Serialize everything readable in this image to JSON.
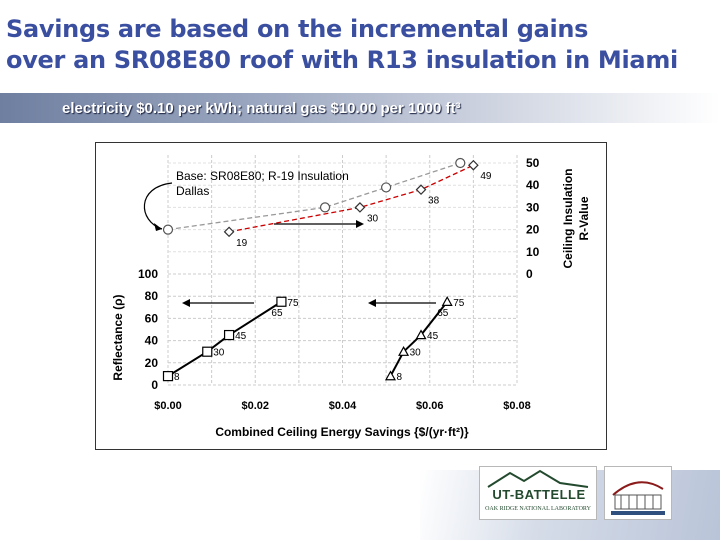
{
  "slide": {
    "title_line1": "Savings are based on the incremental gains",
    "title_line2": "over an SR08E80 roof with R13 insulation in Miami",
    "subtitle": "electricity $0.10 per kWh; natural gas $10.00 per 1000 ft³",
    "logo_text": "UT-BATTELLE",
    "logo_subtext": "OAK RIDGE NATIONAL LABORATORY"
  },
  "colors": {
    "title": "#3b4fa0",
    "series_miami": "#cc0000",
    "series_dallas": "#999999",
    "axis_text": "#000000"
  },
  "chart_data": [
    {
      "type": "line",
      "annotation_line1": "Base: SR08E80; R-19 Insulation",
      "annotation_line2": "Dallas",
      "xlabel": "Combined Ceiling Energy Savings {$/(yr·ft²)}",
      "ylabel": "Ceiling Insulation R-Value",
      "xlim": [
        0,
        0.08
      ],
      "ylim": [
        0,
        50
      ],
      "x_ticks": [
        "$0.00",
        "$0.02",
        "$0.04",
        "$0.06",
        "$0.08"
      ],
      "y_ticks": [
        "0",
        "10",
        "20",
        "30",
        "40",
        "50"
      ],
      "grid": true,
      "series": [
        {
          "marker": "diamond",
          "style": "dashed",
          "color": "#cc0000",
          "x": [
            0.014,
            0.044,
            0.058,
            0.07
          ],
          "y": [
            19,
            30,
            38,
            49
          ],
          "labels": [
            "19",
            "30",
            "38",
            "49"
          ]
        },
        {
          "marker": "circle",
          "style": "dashed",
          "color": "#999999",
          "x": [
            0.0,
            0.036,
            0.05,
            0.067
          ],
          "y": [
            20,
            30,
            39,
            50
          ]
        }
      ]
    },
    {
      "type": "line",
      "xlabel": "Combined Ceiling Energy Savings {$/(yr·ft²)}",
      "ylabel": "Reflectance (ρ)",
      "xlim": [
        0,
        0.08
      ],
      "ylim": [
        0,
        100
      ],
      "x_ticks": [
        "$0.00",
        "$0.02",
        "$0.04",
        "$0.06",
        "$0.08"
      ],
      "y_ticks": [
        "0",
        "20",
        "40",
        "60",
        "80",
        "100"
      ],
      "grid": true,
      "series": [
        {
          "marker": "square",
          "color": "#000000",
          "x": [
            0.0,
            0.009,
            0.014,
            0.026
          ],
          "y": [
            8,
            30,
            45,
            75
          ],
          "labels": [
            "8",
            "30",
            "45",
            "75"
          ],
          "extra_label": "65"
        },
        {
          "marker": "triangle",
          "color": "#000000",
          "x": [
            0.051,
            0.054,
            0.058,
            0.064
          ],
          "y": [
            8,
            30,
            45,
            75
          ],
          "labels": [
            "8",
            "30",
            "45",
            "75"
          ],
          "extra_label": "65"
        }
      ]
    }
  ]
}
